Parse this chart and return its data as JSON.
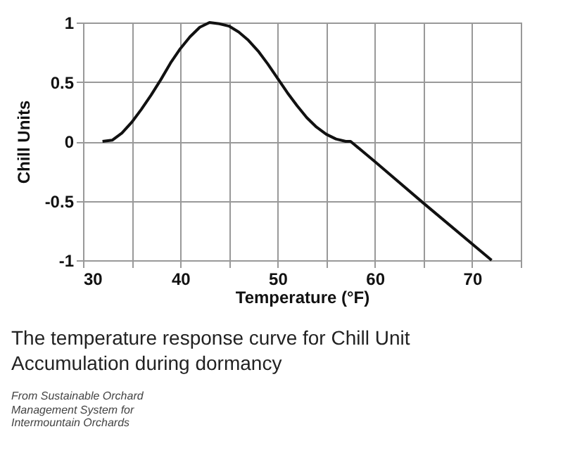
{
  "chart_data": {
    "type": "line",
    "xlabel": "Temperature (°F)",
    "ylabel": "Chill Units",
    "x": [
      32,
      33,
      34,
      35,
      36,
      37,
      38,
      39,
      40,
      41,
      42,
      43,
      44,
      45,
      46,
      47,
      48,
      49,
      50,
      51,
      52,
      53,
      54,
      55,
      56,
      57,
      57.5,
      60,
      65,
      72
    ],
    "series": [
      {
        "color": "#111111",
        "values": [
          0,
          0.01,
          0.07,
          0.16,
          0.27,
          0.39,
          0.52,
          0.66,
          0.78,
          0.88,
          0.96,
          1,
          0.99,
          0.97,
          0.92,
          0.85,
          0.76,
          0.65,
          0.53,
          0.41,
          0.3,
          0.2,
          0.12,
          0.06,
          0.02,
          0,
          0,
          -0.17,
          -0.52,
          -1
        ]
      }
    ],
    "xlim": [
      30,
      75
    ],
    "xticks": [
      30,
      {
        "value": 35,
        "label": null
      },
      40,
      {
        "value": 45,
        "label": null
      },
      50,
      {
        "value": 55,
        "label": null
      },
      60,
      {
        "value": 65,
        "label": null
      },
      70,
      {
        "value": 75,
        "label": null
      }
    ],
    "ylim": [
      -1,
      1
    ],
    "yticks": [
      -1,
      -0.5,
      0,
      0.5,
      1
    ],
    "grid": true,
    "marker": "none",
    "line_style": "solid",
    "annotations": [
      "The temperature response curve for Chill Unit Accumulation during dormancy",
      "From Sustainable Orchard Management System for Intermountain Orchards"
    ]
  }
}
